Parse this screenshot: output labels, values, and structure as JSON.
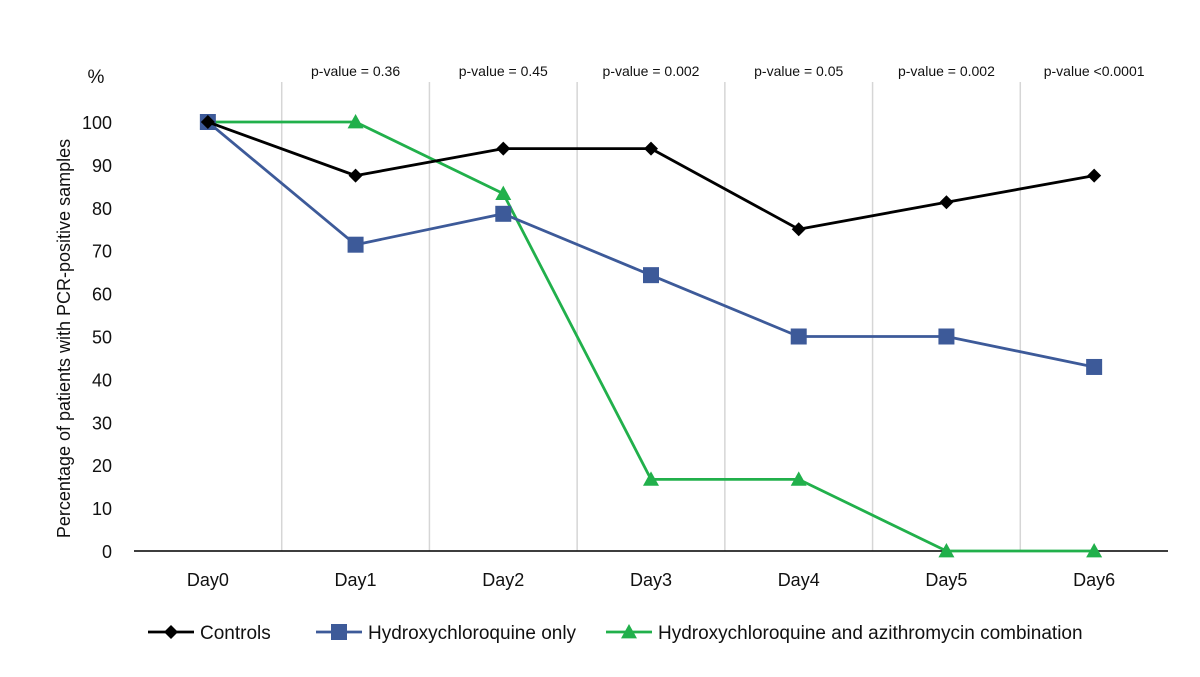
{
  "chart_data": {
    "type": "line",
    "y_unit_label": "%",
    "ylabel": "Percentage of patients with PCR-positive samples",
    "xlabel": "",
    "ylim": [
      0,
      100
    ],
    "yticks": [
      0,
      10,
      20,
      30,
      40,
      50,
      60,
      70,
      80,
      90,
      100
    ],
    "categories": [
      "Day0",
      "Day1",
      "Day2",
      "Day3",
      "Day4",
      "Day5",
      "Day6"
    ],
    "pvalues": [
      "",
      "p-value = 0.36",
      "p-value = 0.45",
      "p-value = 0.002",
      "p-value = 0.05",
      "p-value = 0.002",
      "p-value <0.0001"
    ],
    "grid": "vertical separators between days",
    "legend_position": "bottom",
    "series": [
      {
        "name": "Controls",
        "values": [
          100,
          87.5,
          93.8,
          93.8,
          75,
          81.3,
          87.5
        ],
        "color": "#000000",
        "marker": "diamond"
      },
      {
        "name": "Hydroxychloroquine only",
        "values": [
          100,
          71.4,
          78.6,
          64.3,
          50,
          50,
          42.9
        ],
        "color": "#3d5a99",
        "marker": "square"
      },
      {
        "name": "Hydroxychloroquine and azithromycin combination",
        "values": [
          100,
          100,
          83.3,
          16.7,
          16.7,
          0,
          0
        ],
        "color": "#21b04b",
        "marker": "triangle"
      }
    ]
  }
}
